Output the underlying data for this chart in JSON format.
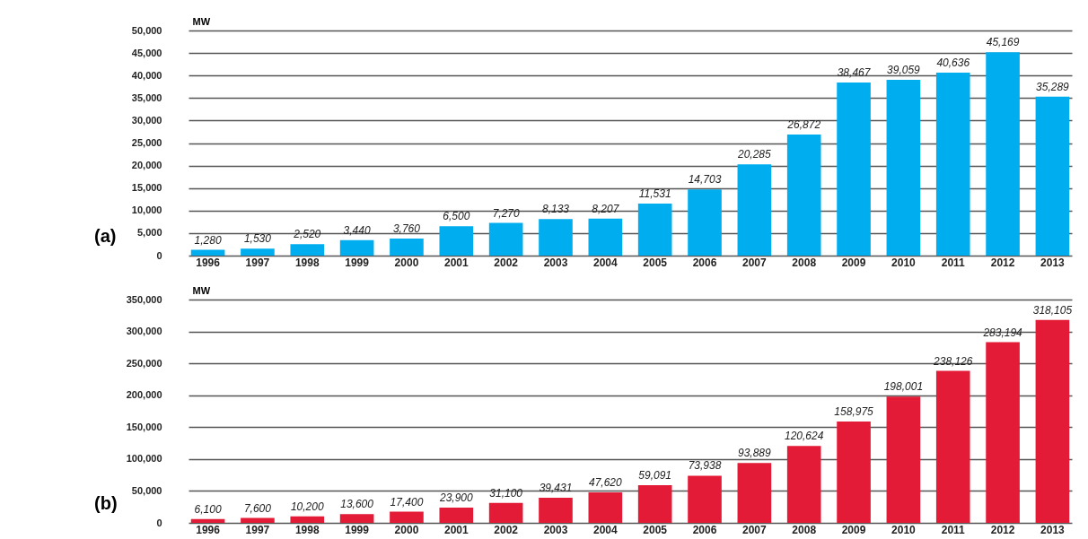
{
  "chart_data": [
    {
      "type": "bar",
      "ylabel": "MW",
      "annotations": [
        "(a)"
      ],
      "categories": [
        "1996",
        "1997",
        "1998",
        "1999",
        "2000",
        "2001",
        "2002",
        "2003",
        "2004",
        "2005",
        "2006",
        "2007",
        "2008",
        "2009",
        "2010",
        "2011",
        "2012",
        "2013"
      ],
      "series": [
        {
          "color": "#00aeef",
          "values": [
            1280,
            1530,
            2520,
            3440,
            3760,
            6500,
            7270,
            8133,
            8207,
            11531,
            14703,
            20285,
            26872,
            38467,
            39059,
            40636,
            45169,
            35289
          ],
          "value_labels": [
            "1,280",
            "1,530",
            "2,520",
            "3,440",
            "3,760",
            "6,500",
            "7,270",
            "8,133",
            "8,207",
            "11,531",
            "14,703",
            "20,285",
            "26,872",
            "38,467",
            "39,059",
            "40,636",
            "45,169",
            "35,289"
          ]
        }
      ],
      "ylim": [
        0,
        50000
      ],
      "yticks": [
        {
          "value": 0,
          "label": "0"
        },
        {
          "value": 5000,
          "label": "5,000"
        },
        {
          "value": 10000,
          "label": "10,000"
        },
        {
          "value": 15000,
          "label": "15,000"
        },
        {
          "value": 20000,
          "label": "20,000"
        },
        {
          "value": 25000,
          "label": "25,000"
        },
        {
          "value": 30000,
          "label": "30,000"
        },
        {
          "value": 35000,
          "label": "35,000"
        },
        {
          "value": 40000,
          "label": "40,000"
        },
        {
          "value": 45000,
          "label": "45,000"
        },
        {
          "value": 50000,
          "label": "50,000"
        }
      ],
      "grid": "y"
    },
    {
      "type": "bar",
      "ylabel": "MW",
      "annotations": [
        "(b)"
      ],
      "categories": [
        "1996",
        "1997",
        "1998",
        "1999",
        "2000",
        "2001",
        "2002",
        "2003",
        "2004",
        "2005",
        "2006",
        "2007",
        "2008",
        "2009",
        "2010",
        "2011",
        "2012",
        "2013"
      ],
      "series": [
        {
          "color": "#e31b37",
          "values": [
            6100,
            7600,
            10200,
            13600,
            17400,
            23900,
            31100,
            39431,
            47620,
            59091,
            73938,
            93889,
            120624,
            158975,
            198001,
            238126,
            283194,
            318105
          ],
          "value_labels": [
            "6,100",
            "7,600",
            "10,200",
            "13,600",
            "17,400",
            "23,900",
            "31,100",
            "39,431",
            "47,620",
            "59,091",
            "73,938",
            "93,889",
            "120,624",
            "158,975",
            "198,001",
            "238,126",
            "283,194",
            "318,105"
          ]
        }
      ],
      "ylim": [
        0,
        350000
      ],
      "yticks": [
        {
          "value": 0,
          "label": "0"
        },
        {
          "value": 50000,
          "label": "50,000"
        },
        {
          "value": 100000,
          "label": "100,000"
        },
        {
          "value": 150000,
          "label": "150,000"
        },
        {
          "value": 200000,
          "label": "200,000"
        },
        {
          "value": 250000,
          "label": "250,000"
        },
        {
          "value": 300000,
          "label": "300,000"
        },
        {
          "value": 350000,
          "label": "350,000"
        }
      ],
      "grid": "y"
    }
  ]
}
